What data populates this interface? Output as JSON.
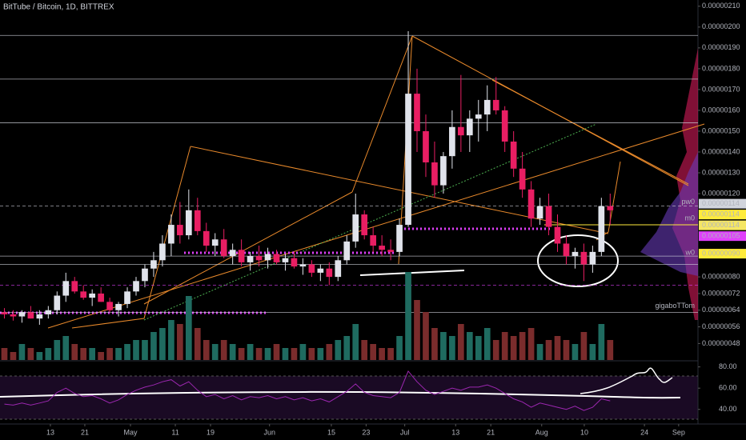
{
  "chart_data": {
    "type": "candlestick",
    "title": "BitTube / Bitcoin, 1D, BITTREX",
    "xlim": [
      -0.5,
      79
    ],
    "xticks": [
      {
        "value": 5.24,
        "label": "13"
      },
      {
        "value": 9.16,
        "label": "21"
      },
      {
        "value": 14.36,
        "label": "May"
      },
      {
        "value": 19.47,
        "label": "11"
      },
      {
        "value": 23.48,
        "label": "19"
      },
      {
        "value": 30.2,
        "label": "Jun"
      },
      {
        "value": 37.24,
        "label": "15"
      },
      {
        "value": 41.2,
        "label": "23"
      },
      {
        "value": 45.6,
        "label": "Jul"
      },
      {
        "value": 51.4,
        "label": "13"
      },
      {
        "value": 55.4,
        "label": "21"
      },
      {
        "value": 61.2,
        "label": "Aug"
      },
      {
        "value": 66.05,
        "label": "10"
      },
      {
        "value": 72.9,
        "label": "24"
      },
      {
        "value": 76.8,
        "label": "Sep"
      }
    ],
    "ylim": [
      4.2e-07,
      2.13e-06
    ],
    "yticks": [
      {
        "value": 2.1e-06,
        "label": "0.00000210"
      },
      {
        "value": 2e-06,
        "label": "0.00000200"
      },
      {
        "value": 1.9e-06,
        "label": "0.00000190"
      },
      {
        "value": 1.8e-06,
        "label": "0.00000180"
      },
      {
        "value": 1.7e-06,
        "label": "0.00000170"
      },
      {
        "value": 1.6e-06,
        "label": "0.00000160"
      },
      {
        "value": 1.5e-06,
        "label": "0.00000150"
      },
      {
        "value": 1.4e-06,
        "label": "0.00000140"
      },
      {
        "value": 1.3e-06,
        "label": "0.00000130"
      },
      {
        "value": 1.2e-06,
        "label": "0.00000120"
      },
      {
        "value": 8e-07,
        "label": "0.00000080"
      },
      {
        "value": 7.2e-07,
        "label": "0.00000072"
      },
      {
        "value": 6.4e-07,
        "label": "0.00000064"
      },
      {
        "value": 5.6e-07,
        "label": "0.00000056"
      },
      {
        "value": 4.8e-07,
        "label": "0.00000048"
      }
    ],
    "up_color": "#e0e3eb",
    "down_color": "#e91e63",
    "open": [
      6.3e-07,
      6.2e-07,
      6.1e-07,
      6.3e-07,
      6e-07,
      6.2e-07,
      6.4e-07,
      7.1e-07,
      7.8e-07,
      7.3e-07,
      7e-07,
      7.2e-07,
      6.8e-07,
      6.4e-07,
      6.7e-07,
      7.3e-07,
      7.8e-07,
      8.4e-07,
      8.8e-07,
      9.6e-07,
      1.05e-06,
      1e-06,
      1.12e-06,
      1.02e-06,
      9.5e-07,
      9.8e-07,
      9e-07,
      9.3e-07,
      8.7e-07,
      9e-07,
      8.8e-07,
      9.1e-07,
      8.7e-07,
      8.9e-07,
      8.5e-07,
      8.6e-07,
      8.2e-07,
      8.4e-07,
      8e-07,
      8.8e-07,
      9.7e-07,
      1.1e-06,
      1e-06,
      9.5e-07,
      9.3e-07,
      9.2e-07,
      1.05e-06,
      1.68e-06,
      1.5e-06,
      1.35e-06,
      1.24e-06,
      1.38e-06,
      1.52e-06,
      1.48e-06,
      1.56e-06,
      1.58e-06,
      1.65e-06,
      1.6e-06,
      1.45e-06,
      1.32e-06,
      1.22e-06,
      1.08e-06,
      1.14e-06,
      1.04e-06,
      9.6e-07,
      9e-07,
      9.2e-07,
      8.6e-07,
      9.2e-07,
      1.14e-06
    ],
    "high": [
      6.5e-07,
      6.4e-07,
      6.4e-07,
      6.6e-07,
      6.4e-07,
      6.6e-07,
      7.3e-07,
      8.2e-07,
      8e-07,
      7.6e-07,
      7.4e-07,
      7.5e-07,
      7e-07,
      6.8e-07,
      7.5e-07,
      8e-07,
      8.6e-07,
      9.2e-07,
      1e-06,
      1.1e-06,
      1.16e-06,
      1.22e-06,
      1.18e-06,
      1.06e-06,
      1.01e-06,
      1.03e-06,
      9.6e-07,
      9.8e-07,
      9.2e-07,
      9.5e-07,
      9.4e-07,
      9.3e-07,
      9.1e-07,
      9.2e-07,
      8.9e-07,
      8.8e-07,
      8.6e-07,
      8.7e-07,
      9e-07,
      1e-06,
      1.2e-06,
      1.12e-06,
      1.04e-06,
      1e-06,
      9.8e-07,
      1.08e-06,
      1.98e-06,
      1.8e-06,
      1.58e-06,
      1.45e-06,
      1.4e-06,
      1.6e-06,
      1.77e-06,
      1.6e-06,
      1.65e-06,
      1.72e-06,
      1.76e-06,
      1.62e-06,
      1.5e-06,
      1.4e-06,
      1.26e-06,
      1.18e-06,
      1.2e-06,
      1.1e-06,
      1e-06,
      9.4e-07,
      9.6e-07,
      9.5e-07,
      1.18e-06,
      1.2e-06
    ],
    "low": [
      6e-07,
      5.9e-07,
      5.8e-07,
      6e-07,
      5.7e-07,
      6e-07,
      6.2e-07,
      6.8e-07,
      7.2e-07,
      6.9e-07,
      6.6e-07,
      6.8e-07,
      6.3e-07,
      6.1e-07,
      6.5e-07,
      7.1e-07,
      7.5e-07,
      8e-07,
      8.5e-07,
      9e-07,
      9.6e-07,
      9.8e-07,
      1e-06,
      9.2e-07,
      9e-07,
      8.9e-07,
      8.6e-07,
      8.5e-07,
      8.3e-07,
      8.5e-07,
      8.4e-07,
      8.6e-07,
      8.3e-07,
      8.4e-07,
      8.1e-07,
      8e-07,
      7.8e-07,
      7.6e-07,
      7.8e-07,
      8.6e-07,
      9.4e-07,
      9.8e-07,
      9.2e-07,
      9e-07,
      8.8e-07,
      9e-07,
      1.04e-06,
      1.4e-06,
      1.28e-06,
      1.18e-06,
      1.2e-06,
      1.32e-06,
      1.4e-06,
      1.4e-06,
      1.45e-06,
      1.5e-06,
      1.58e-06,
      1.4e-06,
      1.28e-06,
      1.18e-06,
      1.04e-06,
      1.05e-06,
      1e-06,
      9.2e-07,
      8.6e-07,
      8.4e-07,
      7.8e-07,
      8.2e-07,
      9e-07,
      1.05e-06
    ],
    "close": [
      6.2e-07,
      6.1e-07,
      6.3e-07,
      6e-07,
      6.2e-07,
      6.4e-07,
      7.1e-07,
      7.8e-07,
      7.3e-07,
      7e-07,
      7.2e-07,
      6.8e-07,
      6.4e-07,
      6.7e-07,
      7.3e-07,
      7.8e-07,
      8.4e-07,
      8.8e-07,
      9.6e-07,
      1.05e-06,
      1e-06,
      1.12e-06,
      1.02e-06,
      9.5e-07,
      9.8e-07,
      9e-07,
      9.3e-07,
      8.7e-07,
      9e-07,
      8.8e-07,
      9.1e-07,
      8.7e-07,
      8.9e-07,
      8.5e-07,
      8.6e-07,
      8.2e-07,
      8.4e-07,
      8e-07,
      8.8e-07,
      9.7e-07,
      1.1e-06,
      1e-06,
      9.5e-07,
      9.3e-07,
      9.2e-07,
      1.05e-06,
      1.68e-06,
      1.5e-06,
      1.35e-06,
      1.24e-06,
      1.38e-06,
      1.52e-06,
      1.48e-06,
      1.56e-06,
      1.58e-06,
      1.65e-06,
      1.6e-06,
      1.45e-06,
      1.32e-06,
      1.22e-06,
      1.08e-06,
      1.14e-06,
      1.04e-06,
      9.6e-07,
      9e-07,
      9.2e-07,
      8.6e-07,
      9.2e-07,
      1.14e-06,
      1.12e-06
    ],
    "volume": [
      3,
      2,
      4,
      3,
      2,
      3,
      5,
      6,
      4,
      3,
      3,
      2,
      3,
      3,
      4,
      5,
      5,
      7,
      8,
      10,
      9,
      16,
      8,
      5,
      4,
      5,
      4,
      3,
      4,
      3,
      3,
      4,
      3,
      3,
      4,
      3,
      3,
      4,
      5,
      6,
      9,
      5,
      4,
      3,
      3,
      6,
      22,
      15,
      12,
      8,
      7,
      6,
      9,
      7,
      6,
      8,
      5,
      7,
      6,
      7,
      8,
      4,
      5,
      6,
      5,
      4,
      7,
      4,
      9,
      5
    ],
    "volume_up_color": "#1f6b60",
    "volume_down_color": "#7a2c2c",
    "levels": [
      1.96e-06,
      1.75e-06,
      1.54e-06,
      1.14e-06,
      9e-07,
      8.6e-07,
      7.6e-07,
      6.3e-07
    ],
    "level_labels": [
      {
        "label": "pw0",
        "value": 1.16e-06
      },
      {
        "label": "m0",
        "value": 1.08e-06
      },
      {
        "label": "w0",
        "value": 9.15e-07
      },
      {
        "label": "gigaboTTom",
        "value": 6.6e-07
      }
    ],
    "price_badges": [
      {
        "label": "0.00000114",
        "value": 1.14e-06,
        "color": "#d1d4dc"
      },
      {
        "label": "0.00000114",
        "value": 1.14e-06,
        "color": "#ffeb3b"
      },
      {
        "label": "0.00000114",
        "value": 1.14e-06,
        "color": "#f5e663"
      },
      {
        "label": "0.00000105",
        "value": 1.05e-06,
        "color": "#e040fb"
      },
      {
        "label": "0.00000090",
        "value": 9e-07,
        "color": "#ffeb3b"
      }
    ],
    "rsi": [
      45,
      44,
      46,
      44,
      46,
      48,
      56,
      60,
      55,
      52,
      53,
      50,
      46,
      49,
      54,
      58,
      61,
      63,
      66,
      68,
      62,
      66,
      58,
      52,
      54,
      50,
      53,
      49,
      52,
      51,
      53,
      50,
      52,
      49,
      51,
      48,
      50,
      47,
      52,
      57,
      64,
      56,
      53,
      52,
      51,
      56,
      76,
      66,
      58,
      54,
      57,
      60,
      58,
      61,
      61,
      63,
      60,
      55,
      50,
      47,
      42,
      46,
      44,
      42,
      40,
      43,
      39,
      42,
      50,
      48
    ],
    "rsi_color": "#9c27b0",
    "rsi_ylim": [
      30,
      85
    ],
    "rsi_yticks": [
      {
        "value": 80,
        "label": "80.00"
      },
      {
        "value": 60,
        "label": "60.00"
      },
      {
        "value": 40,
        "label": "40.00"
      }
    ]
  }
}
